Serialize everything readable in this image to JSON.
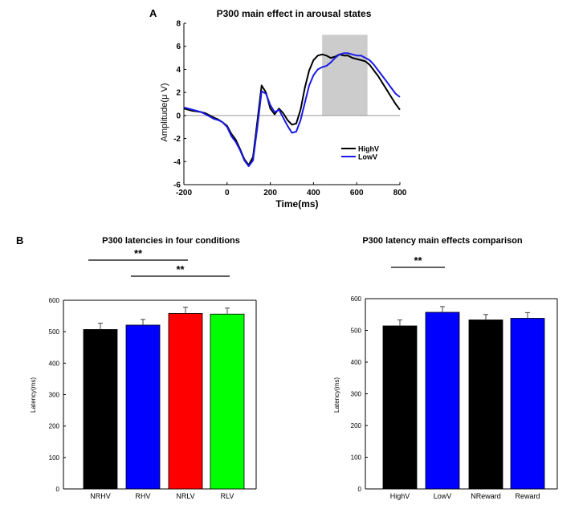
{
  "panel_labels": {
    "a": "A",
    "b": "B"
  },
  "chart_data": [
    {
      "type": "line",
      "title": "P300 main effect in arousal states",
      "xlabel": "Time(ms)",
      "ylabel": "Amplitude(μ V)",
      "xlim": [
        -200,
        800
      ],
      "ylim": [
        -6,
        8
      ],
      "xticks": [
        "-200",
        "0",
        "200",
        "400",
        "600",
        "800"
      ],
      "yticks": [
        "-6",
        "-4",
        "-2",
        "0",
        "2",
        "4",
        "6",
        "8"
      ],
      "shaded_window": [
        440,
        650
      ],
      "zero_line": true,
      "legend": "bottom-right",
      "colors": {
        "HighV": "#000000",
        "LowV": "#1a1ae6",
        "shade": "#cccccc",
        "zero": "#999999"
      },
      "series": [
        {
          "name": "HighV",
          "x": [
            -200,
            -180,
            -160,
            -140,
            -120,
            -100,
            -80,
            -60,
            -40,
            -20,
            0,
            20,
            40,
            60,
            80,
            100,
            120,
            140,
            160,
            180,
            200,
            220,
            240,
            260,
            280,
            300,
            320,
            340,
            360,
            380,
            400,
            420,
            440,
            460,
            480,
            500,
            520,
            540,
            560,
            580,
            600,
            620,
            640,
            660,
            680,
            700,
            720,
            740,
            760,
            780,
            800
          ],
          "y": [
            0.6,
            0.5,
            0.4,
            0.35,
            0.3,
            0.2,
            0,
            -0.2,
            -0.35,
            -0.6,
            -0.9,
            -1.6,
            -2.1,
            -2.9,
            -3.8,
            -4.3,
            -3.6,
            -0.5,
            2.6,
            2.0,
            0.6,
            0.1,
            0.6,
            0.2,
            -0.4,
            -0.8,
            -0.7,
            0.5,
            2.4,
            3.9,
            4.8,
            5.2,
            5.3,
            5.2,
            5.0,
            5.1,
            5.3,
            5.2,
            5.2,
            5.0,
            4.9,
            4.8,
            4.7,
            4.4,
            3.9,
            3.4,
            2.8,
            2.2,
            1.6,
            1.0,
            0.5
          ]
        },
        {
          "name": "LowV",
          "x": [
            -200,
            -180,
            -160,
            -140,
            -120,
            -100,
            -80,
            -60,
            -40,
            -20,
            0,
            20,
            40,
            60,
            80,
            100,
            120,
            140,
            160,
            180,
            200,
            220,
            240,
            260,
            280,
            300,
            320,
            340,
            360,
            380,
            400,
            420,
            440,
            460,
            480,
            500,
            520,
            540,
            560,
            580,
            600,
            620,
            640,
            660,
            680,
            700,
            720,
            740,
            760,
            780,
            800
          ],
          "y": [
            0.7,
            0.6,
            0.5,
            0.4,
            0.3,
            0.1,
            -0.1,
            -0.3,
            -0.4,
            -0.6,
            -1.0,
            -1.8,
            -2.3,
            -3.0,
            -3.9,
            -4.4,
            -3.9,
            -1.0,
            2.1,
            1.9,
            0.9,
            0.3,
            0.5,
            -0.2,
            -0.9,
            -1.5,
            -1.4,
            -0.4,
            1.1,
            2.6,
            3.5,
            4.0,
            4.2,
            4.3,
            4.6,
            5.0,
            5.3,
            5.4,
            5.4,
            5.3,
            5.2,
            5.2,
            5.0,
            4.8,
            4.4,
            3.9,
            3.4,
            2.9,
            2.4,
            1.9,
            1.6
          ]
        }
      ]
    },
    {
      "type": "bar",
      "title": "P300 latencies in four conditions",
      "xlabel": "",
      "ylabel": "Latency(ms)",
      "ylim": [
        0,
        600
      ],
      "yticks": [
        "0",
        "100",
        "200",
        "300",
        "400",
        "500",
        "600"
      ],
      "categories": [
        "NRHV",
        "RHV",
        "NRLV",
        "RLV"
      ],
      "values": [
        507,
        521,
        558,
        556
      ],
      "errors": [
        20,
        18,
        20,
        19
      ],
      "colors": [
        "#000000",
        "#0000ff",
        "#ff0000",
        "#00ff00"
      ],
      "significance": [
        {
          "from": 0,
          "to": 2,
          "label": "**",
          "level": 1
        },
        {
          "from": 1,
          "to": 3,
          "label": "**",
          "level": 0
        }
      ]
    },
    {
      "type": "bar",
      "title": "P300 latency main effects comparison",
      "xlabel": "",
      "ylabel": "Latency(ms)",
      "ylim": [
        0,
        600
      ],
      "yticks": [
        "0",
        "100",
        "200",
        "300",
        "400",
        "500",
        "600"
      ],
      "categories": [
        "HighV",
        "LowV",
        "NReward",
        "Reward"
      ],
      "values": [
        514,
        557,
        533,
        538
      ],
      "errors": [
        19,
        18,
        17,
        18
      ],
      "colors": [
        "#000000",
        "#0000ff",
        "#000000",
        "#0000ff"
      ],
      "significance": [
        {
          "from": 0,
          "to": 1,
          "label": "**",
          "level": 0
        }
      ]
    }
  ]
}
